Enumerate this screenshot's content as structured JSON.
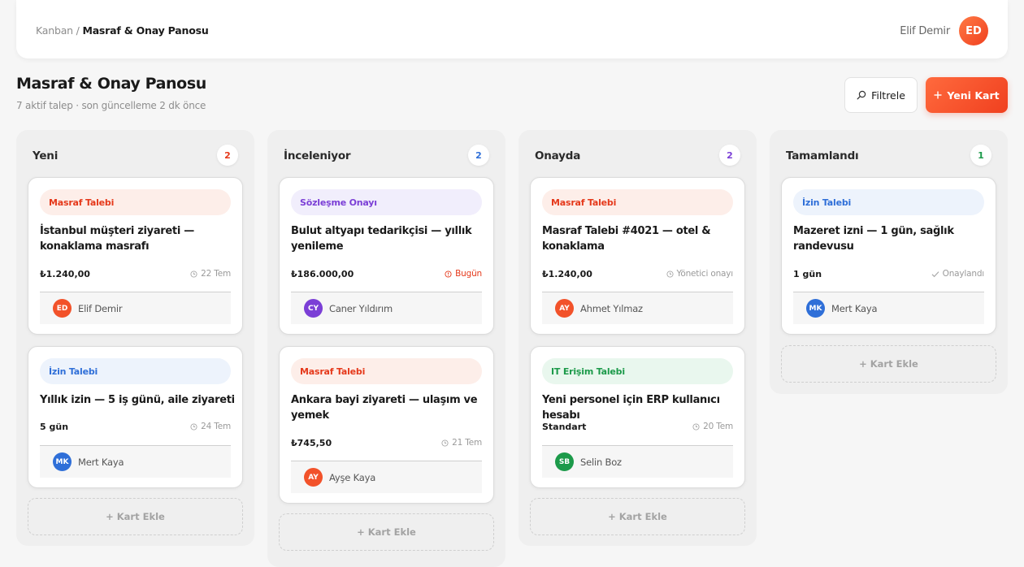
{
  "breadcrumb": {
    "root": "Kanban /",
    "current": "Masraf & Onay Panosu"
  },
  "user": {
    "name": "Elif Demir",
    "initials": "ED"
  },
  "page": {
    "title": "Masraf & Onay Panosu",
    "subtitle": "7 aktif talep · son güncelleme 2 dk önce"
  },
  "toolbar": {
    "filter_label": "Filtrele",
    "new_card_label": "Yeni Kart",
    "filter_icon": "search-icon",
    "new_card_icon": "plus-icon"
  },
  "colors": {
    "accent": "#f0401f",
    "expense": "#e5391b",
    "contract": "#7b3fd6",
    "leave": "#2f6fd8",
    "it": "#1c9a4a",
    "avatar_ed": "#f2522a",
    "avatar_cy": "#7b3fd6",
    "avatar_mk": "#2f6fd8",
    "avatar_ay": "#f2522a",
    "avatar_sb": "#1c9a4a"
  },
  "add_card_label": "+ Kart Ekle",
  "columns": [
    {
      "title": "Yeni",
      "count": "2",
      "cards": [
        {
          "tag": "Masraf Talebi",
          "title": "İstanbul müşteri ziyareti — konaklama masrafı",
          "amount": "₺1.240,00",
          "meta": "22 Tem",
          "meta_icon": "clock-icon",
          "assignee": {
            "initials": "ED",
            "name": "Elif Demir"
          }
        },
        {
          "tag": "İzin Talebi",
          "title": "Yıllık izin — 5 iş günü, aile ziyareti",
          "amount": "5 gün",
          "meta": "24 Tem",
          "meta_icon": "clock-icon",
          "assignee": {
            "initials": "MK",
            "name": "Mert Kaya"
          }
        }
      ]
    },
    {
      "title": "İnceleniyor",
      "count": "2",
      "cards": [
        {
          "tag": "Sözleşme Onayı",
          "title": "Bulut altyapı tedarikçisi — yıllık yenileme",
          "amount": "₺186.000,00",
          "meta": "Bugün",
          "meta_icon": "alert-icon",
          "assignee": {
            "initials": "CY",
            "name": "Caner Yıldırım"
          }
        },
        {
          "tag": "Masraf Talebi",
          "title": "Ankara bayi ziyareti — ulaşım ve yemek",
          "amount": "₺745,50",
          "meta": "21 Tem",
          "meta_icon": "clock-icon",
          "assignee": {
            "initials": "AY",
            "name": "Ayşe Kaya"
          }
        }
      ]
    },
    {
      "title": "Onayda",
      "count": "2",
      "cards": [
        {
          "tag": "Masraf Talebi",
          "title": "Masraf Talebi #4021 — otel & konaklama",
          "amount": "₺1.240,00",
          "meta": "Yönetici onayı",
          "meta_icon": "clock-icon",
          "assignee": {
            "initials": "AY",
            "name": "Ahmet Yılmaz"
          }
        },
        {
          "tag": "IT Erişim Talebi",
          "title": "Yeni personel için ERP kullanıcı hesabı",
          "amount": "Standart",
          "meta": "20 Tem",
          "meta_icon": "clock-icon",
          "assignee": {
            "initials": "SB",
            "name": "Selin Boz"
          }
        }
      ]
    },
    {
      "title": "Tamamlandı",
      "count": "1",
      "cards": [
        {
          "tag": "İzin Talebi",
          "title": "Mazeret izni — 1 gün, sağlık randevusu",
          "amount": "1 gün",
          "meta": "Onaylandı",
          "meta_icon": "check-icon",
          "assignee": {
            "initials": "MK",
            "name": "Mert Kaya"
          }
        }
      ]
    }
  ]
}
